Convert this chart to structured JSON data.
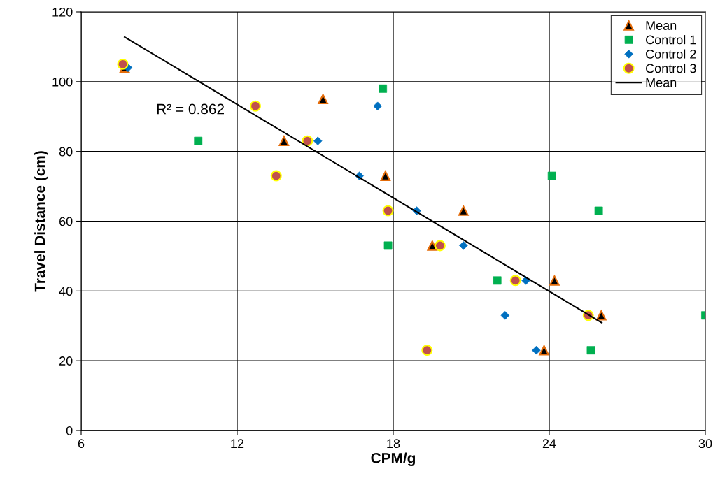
{
  "chart_data": {
    "type": "scatter",
    "xlabel": "CPM/g",
    "ylabel": "Travel Distance (cm)",
    "xlim": [
      6,
      30
    ],
    "xticks": [
      6,
      12,
      18,
      24,
      30
    ],
    "ylim": [
      0,
      120
    ],
    "yticks": [
      0,
      20,
      40,
      60,
      80,
      100,
      120
    ],
    "grid": true,
    "legend": "top right",
    "annotations": [
      "R² = 0.862"
    ],
    "series": [
      {
        "name": "Mean",
        "color": "#000000",
        "marker": "triangle",
        "x": [
          7.67,
          15.3,
          13.8,
          17.7,
          20.7,
          19.5,
          24.2,
          26.0,
          23.8
        ],
        "values": [
          104,
          95,
          83,
          73,
          63,
          53,
          43,
          33,
          23
        ]
      },
      {
        "name": "Control 1",
        "color": "#00b050",
        "marker": "square",
        "x": [
          17.6,
          10.5,
          24.1,
          25.9,
          17.8,
          22.0,
          30.0,
          25.6
        ],
        "values": [
          98,
          83,
          73,
          63,
          53,
          43,
          33,
          23
        ]
      },
      {
        "name": "Control 2",
        "color": "#0070c0",
        "marker": "diamond",
        "x": [
          7.8,
          15.1,
          16.7,
          17.4,
          18.9,
          20.7,
          23.1,
          22.3,
          23.5
        ],
        "values": [
          104,
          83,
          73,
          93,
          63,
          53,
          43,
          33,
          23
        ]
      },
      {
        "name": "Control 3",
        "color": "#c0504d",
        "marker": "circle",
        "x": [
          7.6,
          12.7,
          14.7,
          13.5,
          17.8,
          19.8,
          22.7,
          25.5,
          19.3
        ],
        "values": [
          105,
          93,
          83,
          73,
          63,
          53,
          43,
          33,
          23
        ]
      },
      {
        "name": "Mean",
        "type": "line",
        "color": "#000000",
        "x": [
          7.67,
          26.02
        ],
        "values": [
          112.8,
          30.9
        ]
      }
    ]
  }
}
